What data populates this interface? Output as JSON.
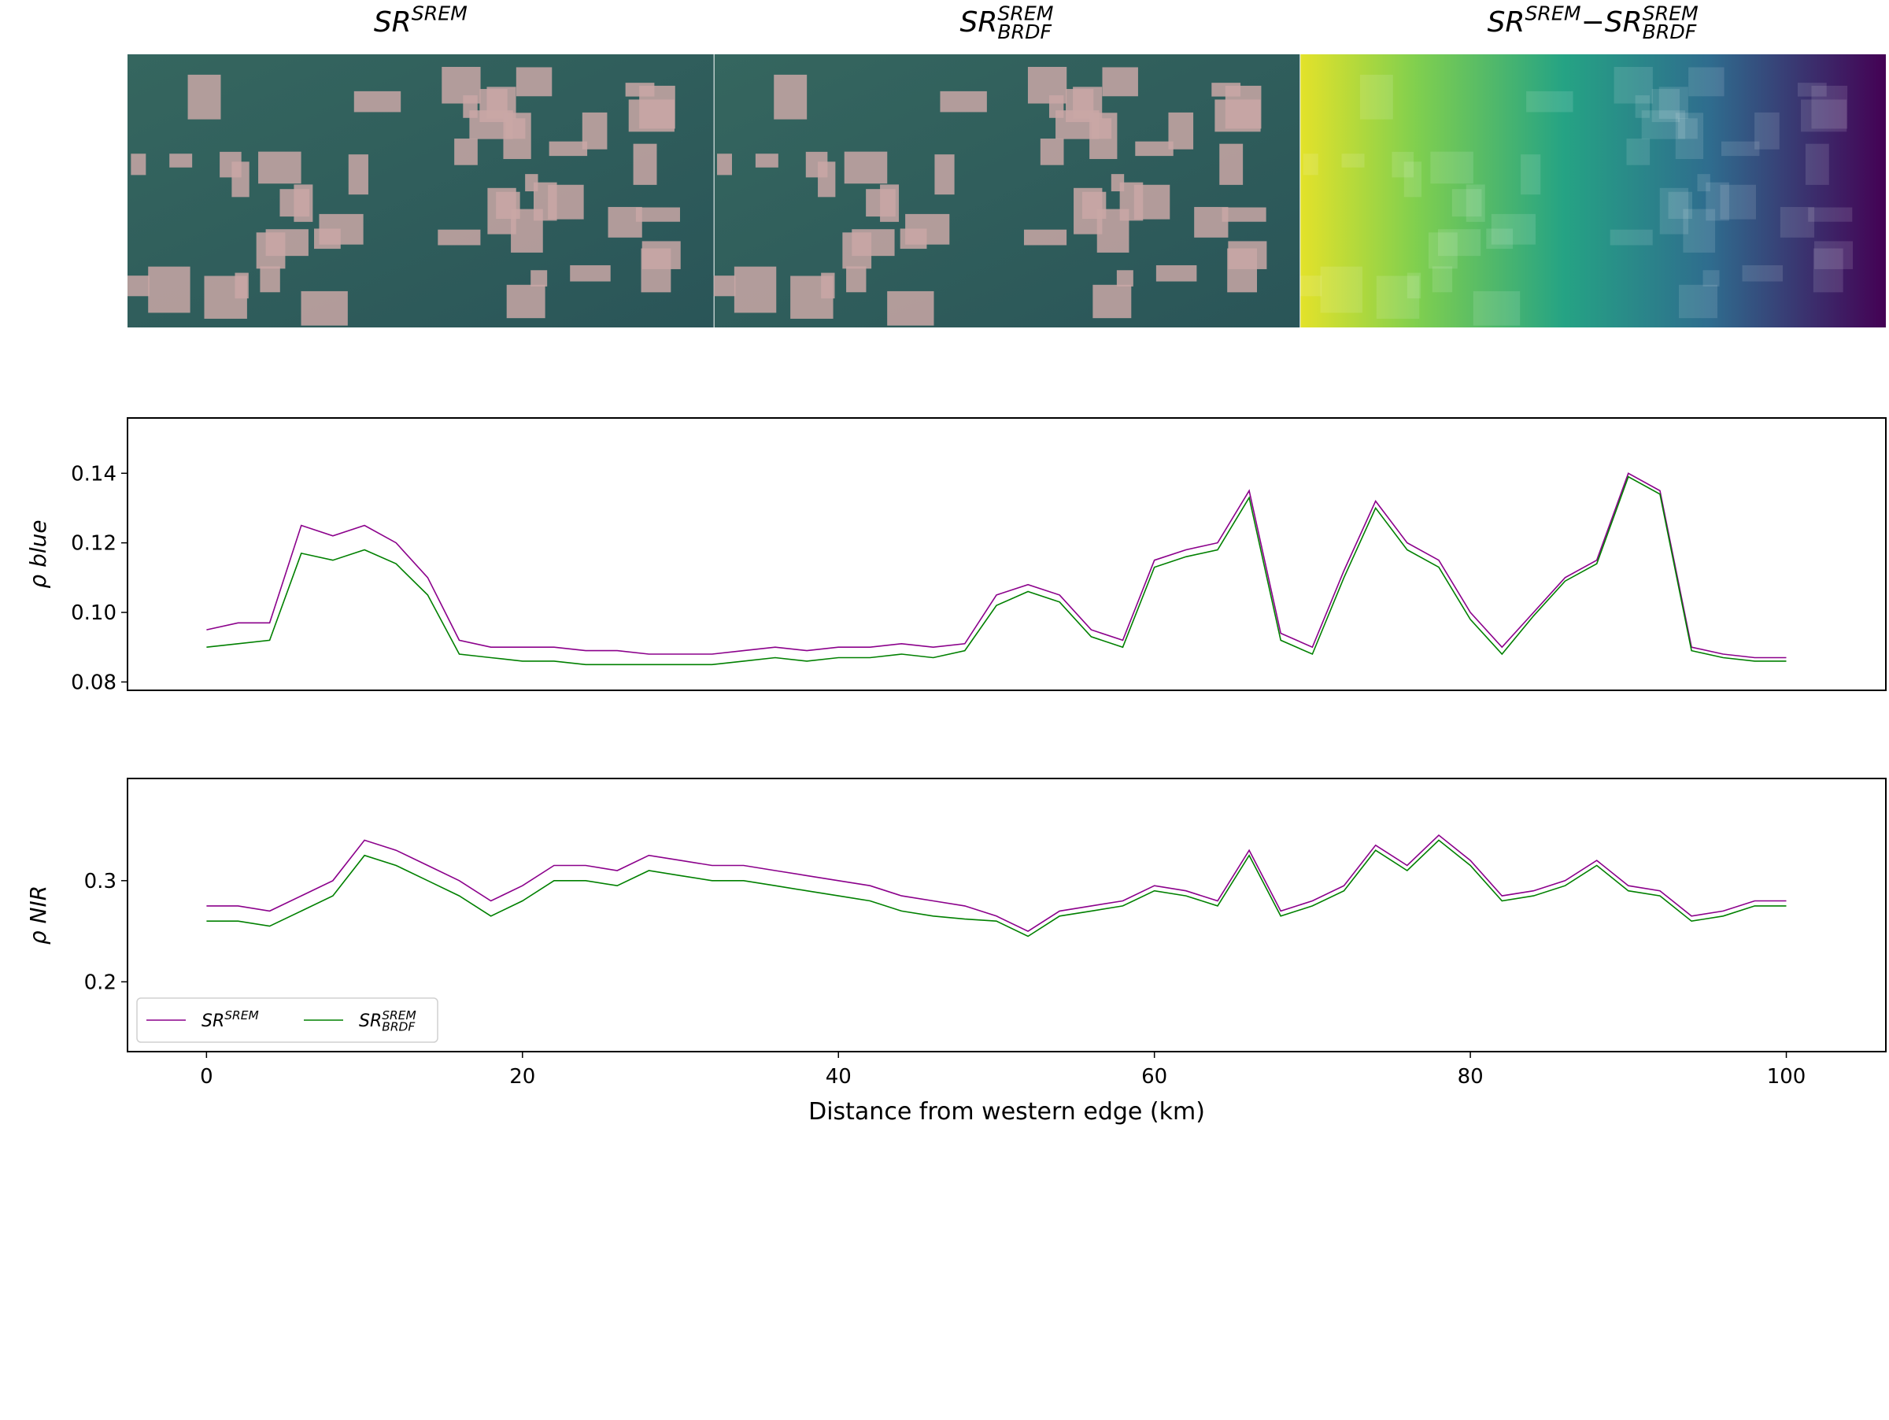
{
  "images": [
    {
      "title": [
        {
          "base": "SR",
          "sup": "SREM"
        }
      ]
    },
    {
      "title": [
        {
          "base": "SR",
          "sup": "SREM",
          "sub": "BRDF"
        }
      ]
    },
    {
      "title": [
        {
          "base": "SR",
          "sup": "SREM"
        },
        {
          "base": "−SR",
          "sup": "SREM",
          "sub": "BRDF"
        }
      ]
    }
  ],
  "chart_data": [
    {
      "type": "line",
      "ylabel": "ρ blue",
      "x": [
        0,
        2,
        4,
        6,
        8,
        10,
        12,
        14,
        16,
        18,
        20,
        22,
        24,
        26,
        28,
        30,
        32,
        34,
        36,
        38,
        40,
        42,
        44,
        46,
        48,
        50,
        52,
        54,
        56,
        58,
        60,
        62,
        64,
        66,
        68,
        70,
        72,
        74,
        76,
        78,
        80,
        82,
        84,
        86,
        88,
        90,
        92,
        94,
        96,
        98,
        100
      ],
      "xlim": [
        -5.0,
        106.3
      ],
      "ylim": [
        0.0776,
        0.1559
      ],
      "yticks": [
        0.08,
        {
          "value": 0.1,
          "label": "0.10"
        },
        0.12,
        0.14
      ],
      "series": [
        {
          "color": "#8b008b",
          "values": [
            0.095,
            0.097,
            0.097,
            0.125,
            0.122,
            0.125,
            0.12,
            0.11,
            0.092,
            0.09,
            0.09,
            0.09,
            0.089,
            0.089,
            0.088,
            0.088,
            0.088,
            0.089,
            0.09,
            0.089,
            0.09,
            0.09,
            0.091,
            0.09,
            0.091,
            0.105,
            0.108,
            0.105,
            0.095,
            0.092,
            0.115,
            0.118,
            0.12,
            0.135,
            0.094,
            0.09,
            0.112,
            0.132,
            0.12,
            0.115,
            0.1,
            0.09,
            0.1,
            0.11,
            0.115,
            0.14,
            0.135,
            0.09,
            0.088,
            0.087,
            0.087
          ]
        },
        {
          "color": "#008000",
          "values": [
            0.09,
            0.091,
            0.092,
            0.117,
            0.115,
            0.118,
            0.114,
            0.105,
            0.088,
            0.087,
            0.086,
            0.086,
            0.085,
            0.085,
            0.085,
            0.085,
            0.085,
            0.086,
            0.087,
            0.086,
            0.087,
            0.087,
            0.088,
            0.087,
            0.089,
            0.102,
            0.106,
            0.103,
            0.093,
            0.09,
            0.113,
            0.116,
            0.118,
            0.133,
            0.092,
            0.088,
            0.11,
            0.13,
            0.118,
            0.113,
            0.098,
            0.088,
            0.099,
            0.109,
            0.114,
            0.139,
            0.134,
            0.089,
            0.087,
            0.086,
            0.086
          ]
        }
      ]
    },
    {
      "type": "line",
      "ylabel": "ρ NIR",
      "xlabel": "Distance from western edge (km)",
      "x": [
        0,
        2,
        4,
        6,
        8,
        10,
        12,
        14,
        16,
        18,
        20,
        22,
        24,
        26,
        28,
        30,
        32,
        34,
        36,
        38,
        40,
        42,
        44,
        46,
        48,
        50,
        52,
        54,
        56,
        58,
        60,
        62,
        64,
        66,
        68,
        70,
        72,
        74,
        76,
        78,
        80,
        82,
        84,
        86,
        88,
        90,
        92,
        94,
        96,
        98,
        100
      ],
      "xlim": [
        -5.0,
        106.3
      ],
      "ylim": [
        0.131,
        0.401
      ],
      "xticks": [
        0,
        20,
        40,
        60,
        80,
        100
      ],
      "yticks": [
        0.2,
        0.3
      ],
      "legend": "lower left",
      "series": [
        {
          "name": [
            {
              "base": "SR",
              "sup": "SREM"
            }
          ],
          "color": "#8b008b",
          "values": [
            0.275,
            0.275,
            0.27,
            0.285,
            0.3,
            0.34,
            0.33,
            0.315,
            0.3,
            0.28,
            0.295,
            0.315,
            0.315,
            0.31,
            0.325,
            0.32,
            0.315,
            0.315,
            0.31,
            0.305,
            0.3,
            0.295,
            0.285,
            0.28,
            0.275,
            0.265,
            0.25,
            0.27,
            0.275,
            0.28,
            0.295,
            0.29,
            0.28,
            0.33,
            0.27,
            0.28,
            0.295,
            0.335,
            0.315,
            0.345,
            0.32,
            0.285,
            0.29,
            0.3,
            0.32,
            0.295,
            0.29,
            0.265,
            0.27,
            0.28,
            0.28
          ]
        },
        {
          "name": [
            {
              "base": "SR",
              "sup": "SREM",
              "sub": "BRDF"
            }
          ],
          "color": "#008000",
          "values": [
            0.26,
            0.26,
            0.255,
            0.27,
            0.285,
            0.325,
            0.315,
            0.3,
            0.285,
            0.265,
            0.28,
            0.3,
            0.3,
            0.295,
            0.31,
            0.305,
            0.3,
            0.3,
            0.295,
            0.29,
            0.285,
            0.28,
            0.27,
            0.265,
            0.262,
            0.26,
            0.245,
            0.265,
            0.27,
            0.275,
            0.29,
            0.285,
            0.275,
            0.325,
            0.265,
            0.275,
            0.29,
            0.33,
            0.31,
            0.34,
            0.315,
            0.28,
            0.285,
            0.295,
            0.315,
            0.29,
            0.285,
            0.26,
            0.265,
            0.275,
            0.275
          ]
        }
      ]
    }
  ]
}
